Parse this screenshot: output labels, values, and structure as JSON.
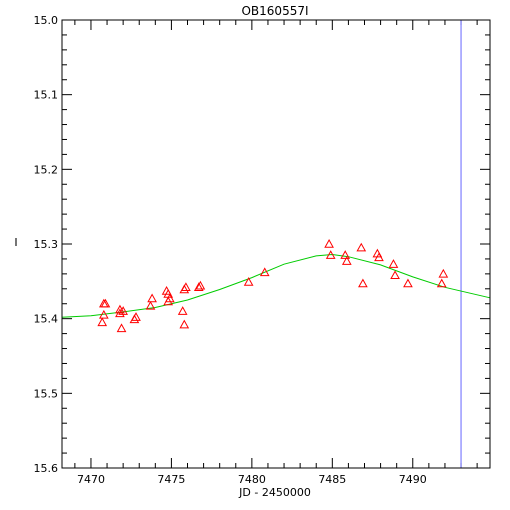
{
  "chart_data": {
    "type": "scatter",
    "title": "OB160557I",
    "xlabel": "JD - 2450000",
    "ylabel": "I",
    "xlim": [
      7468.2,
      7494.8
    ],
    "ylim": [
      15.0,
      15.6
    ],
    "y_inverted": true,
    "x_ticks": [
      7470,
      7475,
      7480,
      7485,
      7490
    ],
    "y_ticks": [
      "15.0",
      "15.1",
      "15.2",
      "15.3",
      "15.4",
      "15.5",
      "15.6"
    ],
    "colors": {
      "points": "#ff0000",
      "model": "#00cc00",
      "marker_line": "#6666ff",
      "axes": "#000000"
    },
    "series": [
      {
        "marker": "triangle",
        "x": [
          7470.7,
          7470.8,
          7470.8,
          7470.9,
          7471.8,
          7471.8,
          7471.9,
          7472.0,
          7472.7,
          7472.8,
          7473.7,
          7473.8,
          7474.7,
          7474.8,
          7474.8,
          7474.9,
          7475.7,
          7475.8,
          7475.8,
          7475.9,
          7476.7,
          7476.8,
          7479.8,
          7480.8,
          7484.8,
          7484.9,
          7485.8,
          7485.9,
          7486.8,
          7486.9,
          7487.8,
          7487.9,
          7488.8,
          7488.9,
          7489.7,
          7491.8,
          7491.9
        ],
        "y": [
          15.405,
          15.395,
          15.38,
          15.38,
          15.388,
          15.393,
          15.413,
          15.39,
          15.401,
          15.398,
          15.383,
          15.373,
          15.363,
          15.377,
          15.367,
          15.373,
          15.39,
          15.408,
          15.361,
          15.358,
          15.358,
          15.356,
          15.351,
          15.338,
          15.3,
          15.315,
          15.315,
          15.323,
          15.305,
          15.353,
          15.313,
          15.318,
          15.327,
          15.342,
          15.353,
          15.353,
          15.34
        ]
      }
    ],
    "model_curve": {
      "x": [
        7468.2,
        7470,
        7472,
        7474,
        7476,
        7478,
        7480,
        7482,
        7484,
        7485,
        7486,
        7488,
        7490,
        7492,
        7494.8
      ],
      "y": [
        15.398,
        15.396,
        15.391,
        15.385,
        15.375,
        15.361,
        15.345,
        15.327,
        15.316,
        15.314,
        15.317,
        15.328,
        15.344,
        15.358,
        15.372
      ]
    },
    "vertical_line_x": 7493.0,
    "grid": false
  }
}
